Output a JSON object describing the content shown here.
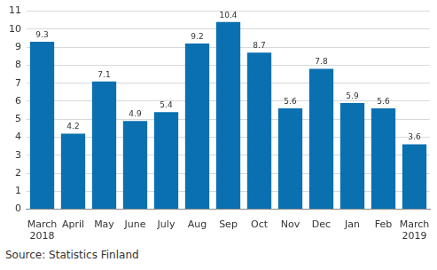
{
  "chart_data": {
    "type": "bar",
    "categories": [
      "March 2018",
      "April",
      "May",
      "June",
      "July",
      "Aug",
      "Sep",
      "Oct",
      "Nov",
      "Dec",
      "Jan",
      "Feb",
      "March 2019"
    ],
    "values": [
      9.3,
      4.2,
      7.1,
      4.9,
      5.4,
      9.2,
      10.4,
      8.7,
      5.6,
      7.8,
      5.9,
      5.6,
      3.6
    ],
    "color": "#0a70b0",
    "ylim": [
      0,
      11
    ],
    "yticks": [
      0,
      1,
      2,
      3,
      4,
      5,
      6,
      7,
      8,
      9,
      10,
      11
    ],
    "grid": true,
    "data_labels": true,
    "source": "Source: Statistics Finland"
  }
}
